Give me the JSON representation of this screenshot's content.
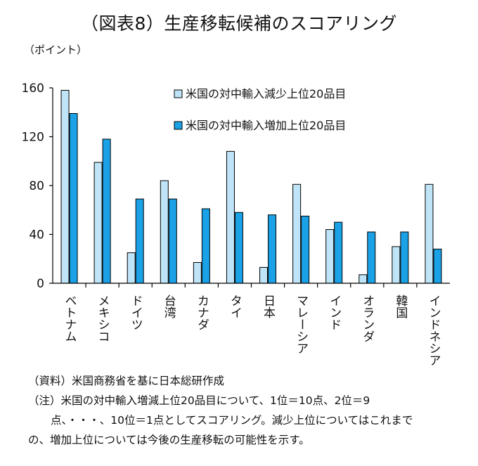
{
  "title": "（図表8）生産移転候補のスコアリング",
  "unit_label": "（ポイント）",
  "chart_data": {
    "type": "bar",
    "title": "（図表8）生産移転候補のスコアリング",
    "ylabel": "（ポイント）",
    "xlabel": "",
    "ylim": [
      0,
      160
    ],
    "yticks": [
      0,
      40,
      80,
      120,
      160
    ],
    "grid": false,
    "legend_position": "top-right",
    "categories": [
      "ベトナム",
      "メキシコ",
      "ドイツ",
      "台湾",
      "カナダ",
      "タイ",
      "日本",
      "マレーシア",
      "インド",
      "オランダ",
      "韓国",
      "インドネシア"
    ],
    "series": [
      {
        "name": "米国の対中輸入減少上位20品目",
        "color": "#bfe4f7",
        "values": [
          158,
          99,
          25,
          84,
          17,
          108,
          13,
          81,
          44,
          7,
          30,
          81
        ]
      },
      {
        "name": "米国の対中輸入増加上位20品目",
        "color": "#1aa1e6",
        "values": [
          139,
          118,
          69,
          69,
          61,
          58,
          56,
          55,
          50,
          42,
          42,
          28
        ]
      }
    ]
  },
  "notes": {
    "source": "（資料）米国商務省を基に日本総研作成",
    "note_line1": "（注）米国の対中輸入増減上位20品目について、1位＝10点、2位＝9",
    "note_line2": "点、・・・、10位＝1点としてスコアリング。減少上位についてはこれまで",
    "note_line3": "の、増加上位については今後の生産移転の可能性を示す。"
  }
}
